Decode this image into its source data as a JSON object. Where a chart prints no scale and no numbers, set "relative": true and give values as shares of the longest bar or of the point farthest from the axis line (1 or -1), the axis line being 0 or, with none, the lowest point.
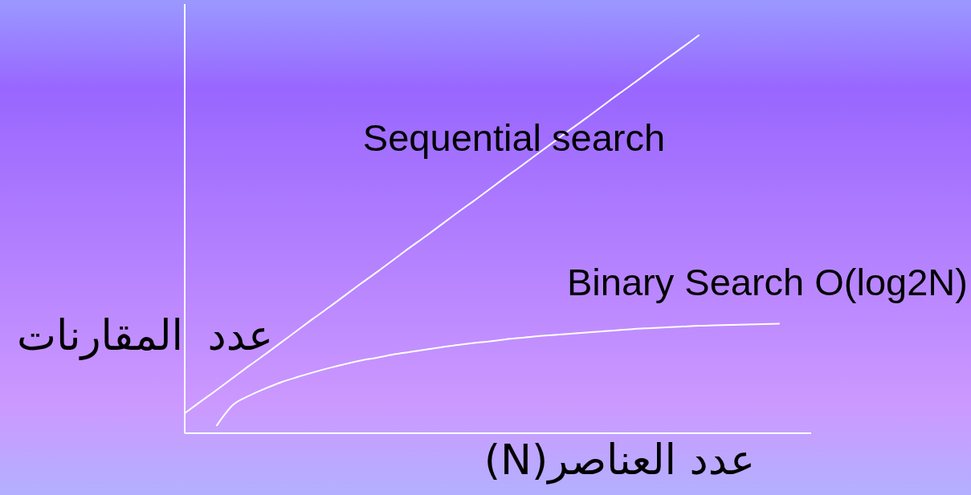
{
  "chart_data": {
    "type": "line",
    "relative": true,
    "legend": false,
    "xlabel": "عدد العناصر(N)",
    "ylabel": "عدد المقارنات",
    "categories": [
      null,
      null,
      null,
      null,
      null,
      null,
      null,
      null,
      null,
      null,
      null,
      null,
      null,
      null,
      null,
      null,
      null,
      null,
      null,
      null,
      null,
      null,
      null,
      null,
      null,
      null,
      null,
      null,
      null,
      null,
      null,
      null,
      null,
      null,
      null,
      null,
      null,
      null,
      null,
      null
    ],
    "series": [
      {
        "name": "Sequential search",
        "color": "#ffffff",
        "values": [
          0.05,
          0.08,
          0.109,
          0.139,
          0.169,
          0.198,
          0.228,
          0.258,
          0.288,
          0.317,
          0.347,
          0.377,
          0.406,
          0.436,
          0.466,
          0.495,
          0.525,
          0.555,
          0.584,
          0.614,
          0.644,
          0.673,
          0.703,
          0.733,
          0.763,
          0.792,
          0.822,
          0.852,
          0.881,
          0.911,
          0.941,
          0.97,
          1,
          null,
          null,
          null,
          null,
          null,
          null,
          null
        ]
      },
      {
        "name": "Binary Search O(log2N)",
        "color": "#ffffff",
        "values": [
          null,
          null,
          0.02,
          0.071,
          0.094,
          0.112,
          0.128,
          0.141,
          0.153,
          0.164,
          0.174,
          0.183,
          0.19,
          0.198,
          0.204,
          0.21,
          0.216,
          0.222,
          0.227,
          0.231,
          0.236,
          0.24,
          0.244,
          0.247,
          0.25,
          0.253,
          0.256,
          0.259,
          0.262,
          0.264,
          0.266,
          0.268,
          0.27,
          0.271,
          0.272,
          0.273,
          0.274,
          0.275,
          null,
          null
        ]
      }
    ]
  }
}
